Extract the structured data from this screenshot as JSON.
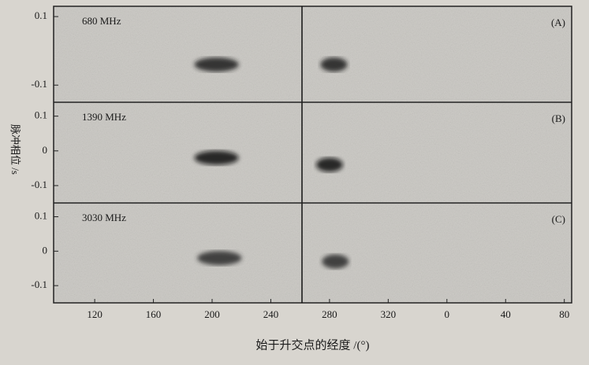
{
  "chart_data": [
    {
      "type": "scatter",
      "title": "680 MHz",
      "panel": "(A)",
      "x": [
        203,
        283
      ],
      "values": [
        -0.04,
        -0.04
      ],
      "color": "#1e1e1e",
      "xlim": [
        92,
        445
      ],
      "ylim": [
        -0.15,
        0.13
      ],
      "yticks": [
        0.1,
        -0.1
      ]
    },
    {
      "type": "scatter",
      "title": "1390 MHz",
      "panel": "(B)",
      "x": [
        203,
        280
      ],
      "values": [
        -0.02,
        -0.04
      ],
      "color": "#111111",
      "xlim": [
        92,
        445
      ],
      "ylim": [
        -0.15,
        0.14
      ],
      "yticks": [
        0.1,
        0,
        -0.1
      ],
      "ylabel": "脉冲相位 /s"
    },
    {
      "type": "scatter",
      "title": "3030 MHz",
      "panel": "(C)",
      "x": [
        205,
        284
      ],
      "values": [
        -0.02,
        -0.03
      ],
      "color": "#2a2a2a",
      "xlim": [
        92,
        445
      ],
      "ylim": [
        -0.15,
        0.14
      ],
      "yticks": [
        0.1,
        0,
        -0.1
      ],
      "xticks": [
        120,
        160,
        200,
        240,
        280,
        320,
        {
          "value": 360,
          "label": "0"
        },
        {
          "value": 400,
          "label": "40"
        },
        {
          "value": 440,
          "label": "80"
        }
      ],
      "xlabel": "始于升交点的经度 /(°)"
    }
  ]
}
